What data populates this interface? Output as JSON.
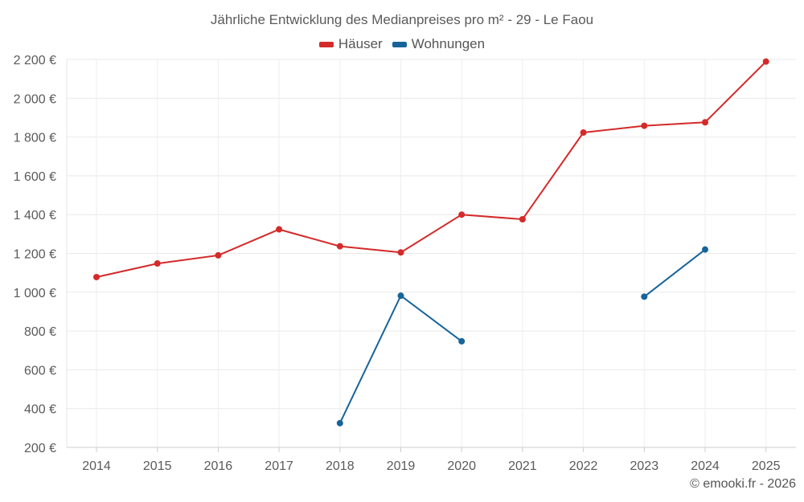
{
  "chart_data": {
    "type": "line",
    "title": "Jährliche Entwicklung des Medianpreises pro m² - 29 - Le Faou",
    "categories": [
      "2014",
      "2015",
      "2016",
      "2017",
      "2018",
      "2019",
      "2020",
      "2021",
      "2022",
      "2023",
      "2024",
      "2025"
    ],
    "series": [
      {
        "name": "Häuser",
        "color": "#d42a2a",
        "values": [
          1078,
          1148,
          1190,
          1324,
          1237,
          1205,
          1400,
          1376,
          1823,
          1858,
          1876,
          2189
        ]
      },
      {
        "name": "Wohnungen",
        "color": "#17649b",
        "values": [
          null,
          null,
          null,
          null,
          325,
          982,
          747,
          null,
          null,
          977,
          1220,
          null
        ]
      }
    ],
    "ylim": [
      200,
      2200
    ],
    "yticks": [
      200,
      400,
      600,
      800,
      1000,
      1200,
      1400,
      1600,
      1800,
      2000,
      2200
    ],
    "ytick_labels": [
      "200 €",
      "400 €",
      "600 €",
      "800 €",
      "1 000 €",
      "1 200 €",
      "1 400 €",
      "1 600 €",
      "1 800 €",
      "2 000 €",
      "2 200 €"
    ],
    "grid": true,
    "legend": "top-center"
  },
  "credit": "© emooki.fr - 2026"
}
